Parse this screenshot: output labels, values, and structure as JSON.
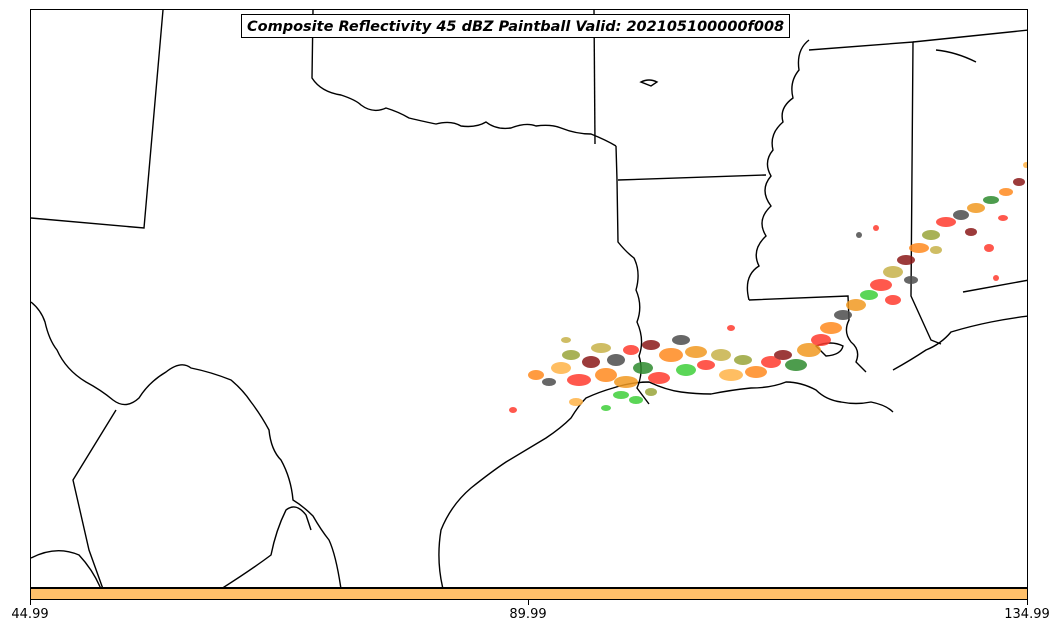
{
  "title": "Composite Reflectivity 45 dBZ Paintball Valid: 202105100000f008",
  "map": {
    "boundary_color": "#000000",
    "background": "#ffffff",
    "paintball_colors": [
      "#ff3b2f",
      "#ff8a1f",
      "#f29a22",
      "#3fcf3a",
      "#2e8b2e",
      "#9aa53a",
      "#c7b24a",
      "#4d4d4d",
      "#8b1a1a",
      "#ffb347"
    ]
  },
  "colorbar": {
    "color": "#ffc06a",
    "tick_labels": [
      "44.99",
      "89.99",
      "134.99"
    ]
  }
}
